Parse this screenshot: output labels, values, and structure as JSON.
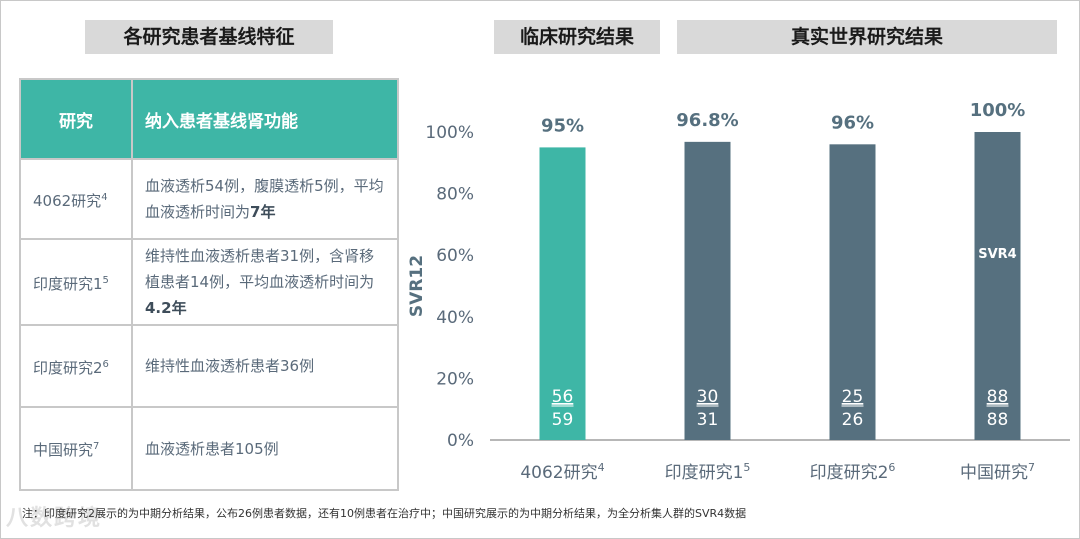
{
  "headers": {
    "left": "各研究患者基线特征",
    "middle": "临床研究结果",
    "right": "真实世界研究结果"
  },
  "table": {
    "col1": "研究",
    "col2": "纳入患者基线肾功能",
    "rows": [
      {
        "name": "4062研究",
        "sup": "4",
        "text": "血液透析54例，腹膜透析5例，平均血液透析时间为",
        "bold": "7年"
      },
      {
        "name": "印度研究1",
        "sup": "5",
        "text": "维持性血液透析患者31例，含肾移植患者14例，平均血液透析时间为",
        "bold": "4.2年"
      },
      {
        "name": "印度研究2",
        "sup": "6",
        "text": "维持性血液透析患者36例",
        "bold": ""
      },
      {
        "name": "中国研究",
        "sup": "7",
        "text": "血液透析患者105例",
        "bold": ""
      }
    ]
  },
  "chart_data": {
    "type": "bar",
    "ylabel": "SVR12",
    "ylim": [
      0,
      100
    ],
    "yticks": [
      "0%",
      "20%",
      "40%",
      "60%",
      "80%",
      "100%"
    ],
    "categories": [
      "4062研究",
      "印度研究1",
      "印度研究2",
      "中国研究"
    ],
    "category_sups": [
      "4",
      "5",
      "6",
      "7"
    ],
    "values": [
      95,
      96.8,
      96,
      100
    ],
    "value_labels": [
      "95%",
      "96.8%",
      "96%",
      "100%"
    ],
    "numerators": [
      "56",
      "30",
      "25",
      "88"
    ],
    "denominators": [
      "59",
      "31",
      "26",
      "88"
    ],
    "inner_labels": [
      "",
      "",
      "",
      "SVR4"
    ],
    "colors": [
      "#3eb6a6",
      "#56707f",
      "#56707f",
      "#56707f"
    ]
  },
  "footnote": "注：印度研究2展示的为中期分析结果，公布26例患者数据，还有10例患者在治疗中；中国研究展示的为中期分析结果，为全分析集人群的SVR4数据",
  "watermark": "八数跨境"
}
